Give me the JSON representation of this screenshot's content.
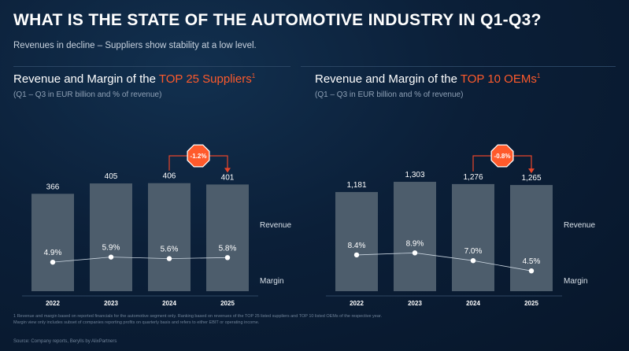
{
  "title": "WHAT IS THE STATE OF THE AUTOMOTIVE INDUSTRY IN Q1-Q3?",
  "subtitle": "Revenues in decline – Suppliers show stability at a low level.",
  "panels": [
    {
      "title_prefix": "Revenue and Margin of the ",
      "title_highlight": "TOP 25 Suppliers",
      "title_sup": "1",
      "subtitle": "(Q1 – Q3 in EUR billion and % of revenue)"
    },
    {
      "title_prefix": "Revenue and Margin of the ",
      "title_highlight": "TOP 10 OEMs",
      "title_sup": "1",
      "subtitle": "(Q1 – Q3 in EUR billion and % of revenue)"
    }
  ],
  "chart_data": [
    {
      "type": "bar",
      "name": "TOP 25 Suppliers",
      "categories": [
        "2022",
        "2023",
        "2024",
        "2025"
      ],
      "series": [
        {
          "name": "Revenue",
          "values": [
            366,
            405,
            406,
            401
          ],
          "labels": [
            "366",
            "405",
            "406",
            "401"
          ]
        },
        {
          "name": "Margin",
          "type": "line",
          "values": [
            4.9,
            5.9,
            5.6,
            5.8
          ],
          "labels": [
            "4.9%",
            "5.9%",
            "5.6%",
            "5.8%"
          ]
        }
      ],
      "legend": [
        "Revenue",
        "Margin"
      ],
      "annotation": {
        "label": "-1.2%",
        "from": "2024",
        "to": "2025"
      },
      "ylim": [
        0,
        420
      ],
      "margin_ylim": [
        2,
        10
      ]
    },
    {
      "type": "bar",
      "name": "TOP 10 OEMs",
      "categories": [
        "2022",
        "2023",
        "2024",
        "2025"
      ],
      "series": [
        {
          "name": "Revenue",
          "values": [
            1181,
            1303,
            1276,
            1265
          ],
          "labels": [
            "1,181",
            "1,303",
            "1,276",
            "1,265"
          ]
        },
        {
          "name": "Margin",
          "type": "line",
          "values": [
            8.4,
            8.9,
            7.0,
            4.5
          ],
          "labels": [
            "8.4%",
            "8.9%",
            "7.0%",
            "4.5%"
          ]
        }
      ],
      "legend": [
        "Revenue",
        "Margin"
      ],
      "annotation": {
        "label": "-0.8%",
        "from": "2024",
        "to": "2025"
      },
      "ylim": [
        0,
        1350
      ],
      "margin_ylim": [
        3,
        13
      ]
    }
  ],
  "colors": {
    "bar": "#4d5d6c",
    "accent": "#ff5a2b",
    "arrow": "#e8452a",
    "line": "#c8d3de",
    "grid": "#3b5573"
  },
  "footnote_lines": [
    "1 Revenue and margin based on reported financials for the automotive segment only. Ranking based on revenues of the TOP 25 listed suppliers and TOP 10 listed OEMs of the respective year.",
    "Margin view only includes subset of companies reporting profits on quarterly basis and refers to either EBIT or operating income."
  ],
  "source": "Source: Company reports, Berylls by AlixPartners"
}
